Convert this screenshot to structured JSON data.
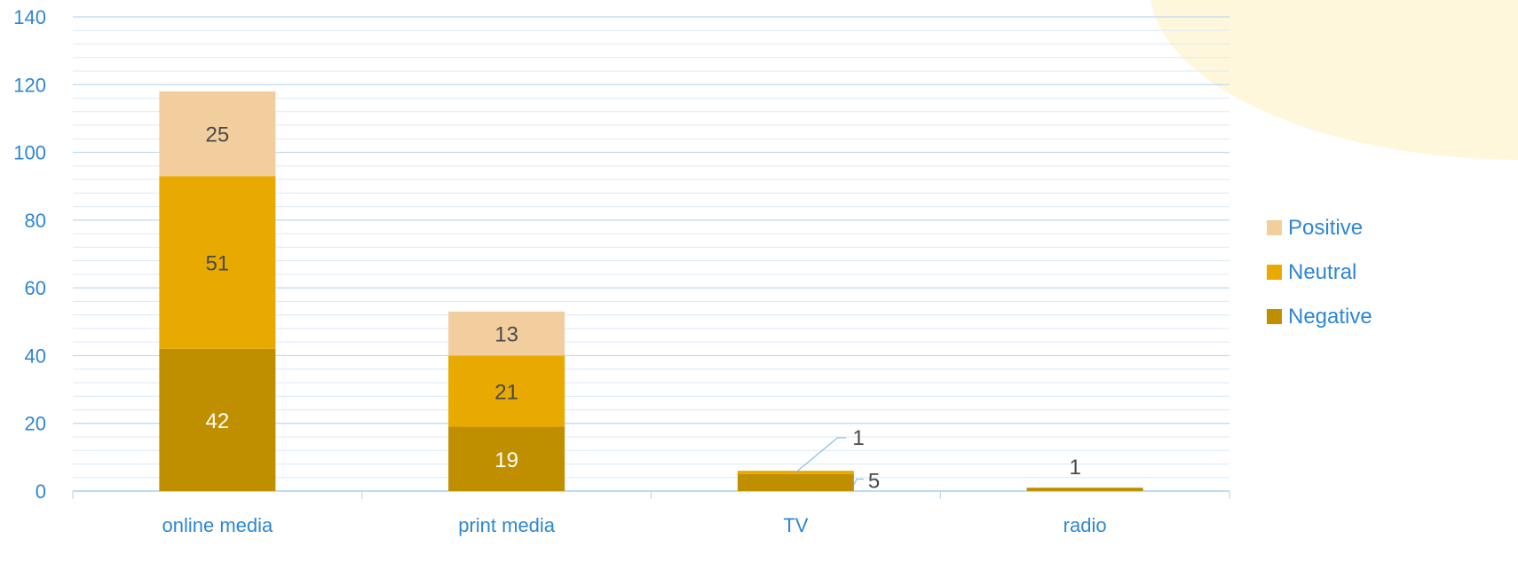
{
  "chart_data": {
    "type": "bar",
    "stacked": true,
    "categories": [
      "online media",
      "print media",
      "TV",
      "radio"
    ],
    "series": [
      {
        "name": "Negative",
        "values": [
          42,
          19,
          5,
          1
        ],
        "color": "#C08F00"
      },
      {
        "name": "Neutral",
        "values": [
          51,
          21,
          1,
          0
        ],
        "color": "#E8AA00"
      },
      {
        "name": "Positive",
        "values": [
          25,
          13,
          0,
          0
        ],
        "color": "#F2CE9F"
      }
    ],
    "data_labels": {
      "online media": {
        "Negative": "42",
        "Neutral": "51",
        "Positive": "25"
      },
      "print media": {
        "Negative": "19",
        "Neutral": "21",
        "Positive": "13"
      },
      "TV": {
        "Negative": "5",
        "Neutral": "1"
      },
      "radio": {
        "Negative": "1"
      }
    },
    "ylim": [
      0,
      140
    ],
    "yticks": [
      "0",
      "20",
      "40",
      "60",
      "80",
      "100",
      "120",
      "140"
    ],
    "grid": true,
    "legend_position": "right",
    "legend_order": [
      "Positive",
      "Neutral",
      "Negative"
    ],
    "axis_text_color": "#2E86D4",
    "label_color": "#4A4A4A",
    "background_accent": "#FFF7DC"
  }
}
